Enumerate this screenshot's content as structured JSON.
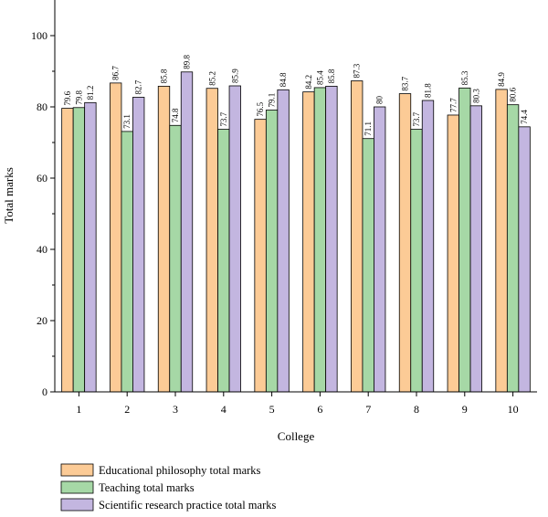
{
  "chart_data": {
    "type": "bar",
    "xlabel": "College",
    "ylabel": "Total marks",
    "ylim": [
      0,
      110
    ],
    "yticks": [
      0,
      20,
      40,
      60,
      80,
      100
    ],
    "categories": [
      "1",
      "2",
      "3",
      "4",
      "5",
      "6",
      "7",
      "8",
      "9",
      "10"
    ],
    "grid": false,
    "legend_position": "bottom-left",
    "series": [
      {
        "name": "Educational philosophy total marks",
        "color": "#FCCB96",
        "values": [
          79.6,
          86.7,
          85.8,
          85.2,
          76.5,
          84.2,
          87.3,
          83.7,
          77.7,
          84.9
        ],
        "labels": [
          "79.6",
          "86.7",
          "85.8",
          "85.2",
          "76.5",
          "84.2",
          "87.3",
          "83.7",
          "77.7",
          "84.9"
        ]
      },
      {
        "name": "Teaching total marks",
        "color": "#A6D8A6",
        "values": [
          79.8,
          73.1,
          74.8,
          73.7,
          79.1,
          85.4,
          71.1,
          73.7,
          85.3,
          80.6
        ],
        "labels": [
          "79.8",
          "73.1",
          "74.8",
          "73.7",
          "79.1",
          "85.4",
          "71.1",
          "73.7",
          "85.3",
          "80.6"
        ]
      },
      {
        "name": "Scientific research practice total marks",
        "color": "#C3B6E0",
        "values": [
          81.2,
          82.7,
          89.8,
          85.9,
          84.8,
          85.8,
          80,
          81.8,
          80.3,
          74.4
        ],
        "labels": [
          "81.2",
          "82.7",
          "89.8",
          "85.9",
          "84.8",
          "85.8",
          "80",
          "81.8",
          "80.3",
          "74.4"
        ]
      }
    ]
  }
}
